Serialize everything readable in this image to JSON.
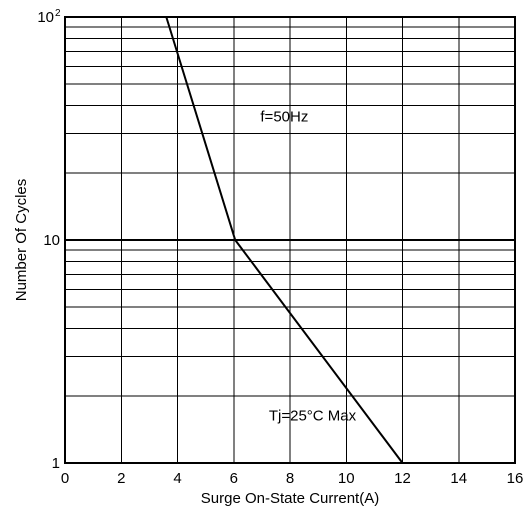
{
  "chart_data": {
    "type": "line",
    "title": "",
    "xlabel": "Surge On-State Current(A)",
    "ylabel": "Number Of Cycles",
    "xlim": [
      0,
      16
    ],
    "ylim": [
      1,
      100
    ],
    "y_scale": "log",
    "grid": true,
    "x_ticks": [
      "0",
      "2",
      "4",
      "6",
      "8",
      "10",
      "12",
      "14",
      "16"
    ],
    "y_ticks": [
      {
        "value": 1,
        "base": "1",
        "exp": ""
      },
      {
        "value": 10,
        "base": "10",
        "exp": ""
      },
      {
        "value": 100,
        "base": "10",
        "exp": "2"
      }
    ],
    "series": [
      {
        "x": [
          3.6,
          6.05,
          12.0
        ],
        "y": [
          100,
          10,
          1
        ]
      }
    ],
    "annotations": [
      {
        "text": "f=50Hz",
        "x": 7.8,
        "y": 34
      },
      {
        "text": "Tj=25°C Max",
        "x": 8.8,
        "y": 1.55
      }
    ],
    "line_color": "#000000",
    "grid_color": "#000000"
  }
}
